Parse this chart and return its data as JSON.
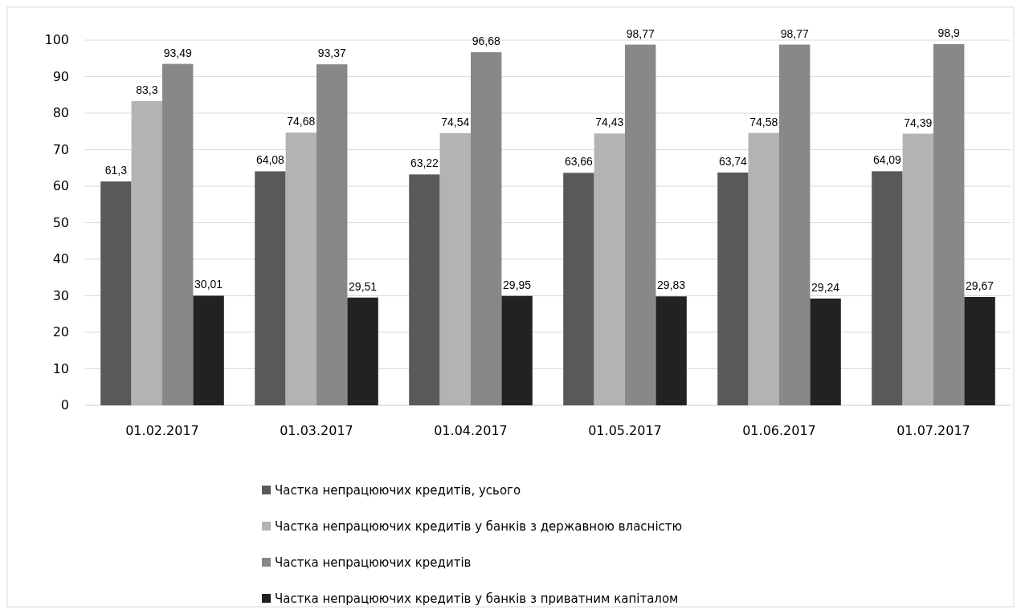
{
  "chart_data": {
    "type": "bar",
    "categories": [
      "01.02.2017",
      "01.03.2017",
      "01.04.2017",
      "01.05.2017",
      "01.06.2017",
      "01.07.2017"
    ],
    "series": [
      {
        "name": "Частка непрацюючих кредитів, усього",
        "color": "#595959",
        "values": [
          61.3,
          64.08,
          63.22,
          63.66,
          63.74,
          64.09
        ],
        "value_labels": [
          "61,3",
          "64,08",
          "63,22",
          "63,66",
          "63,74",
          "64,09"
        ]
      },
      {
        "name": "Частка непрацюючих кредитів у банків з державною власністю",
        "color": "#b3b3b3",
        "values": [
          83.3,
          74.68,
          74.54,
          74.43,
          74.58,
          74.39
        ],
        "value_labels": [
          "83,3",
          "74,68",
          "74,54",
          "74,43",
          "74,58",
          "74,39"
        ]
      },
      {
        "name": "Частка непрацюючих кредитів",
        "color": "#888888",
        "values": [
          93.49,
          93.37,
          96.68,
          98.77,
          98.77,
          98.9
        ],
        "value_labels": [
          "93,49",
          "93,37",
          "96,68",
          "98,77",
          "98,77",
          "98,9"
        ]
      },
      {
        "name": "Частка непрацюючих кредитів у банків з приватним капіталом",
        "color": "#222222",
        "values": [
          30.01,
          29.51,
          29.95,
          29.83,
          29.24,
          29.67
        ],
        "value_labels": [
          "30,01",
          "29,51",
          "29,95",
          "29,83",
          "29,24",
          "29,67"
        ]
      }
    ],
    "ylim": [
      0,
      100
    ],
    "yticks": [
      0,
      10,
      20,
      30,
      40,
      50,
      60,
      70,
      80,
      90,
      100
    ],
    "grid": "y",
    "legend": "bottom"
  }
}
